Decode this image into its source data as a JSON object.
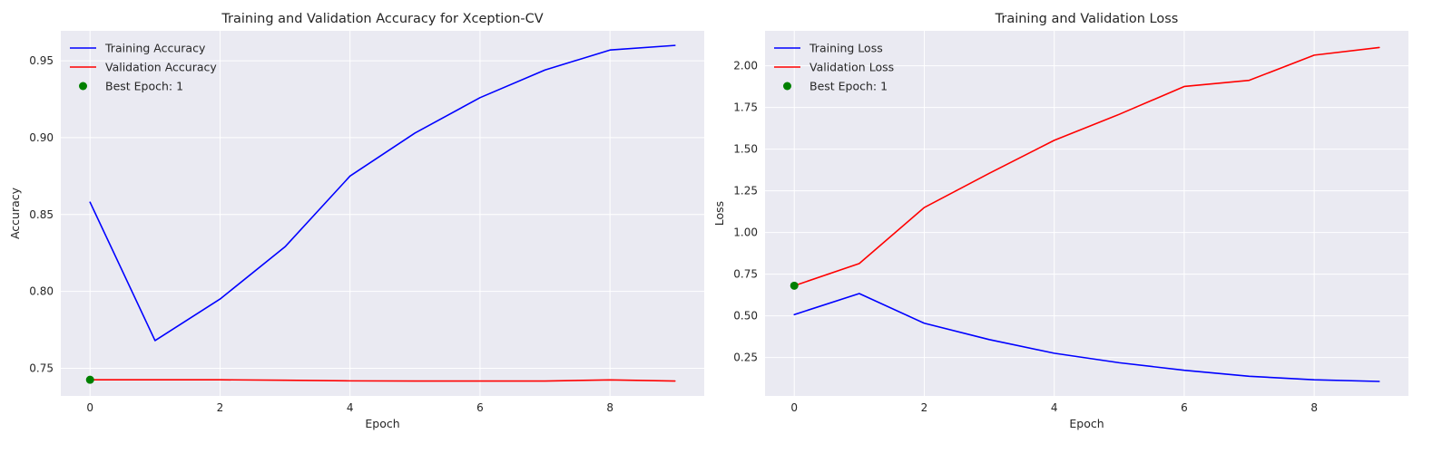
{
  "chart_data": [
    {
      "type": "line",
      "title": "Training and Validation Accuracy for Xception-CV",
      "xlabel": "Epoch",
      "ylabel": "Accuracy",
      "xlim": [
        -0.45,
        9.45
      ],
      "ylim": [
        0.732,
        0.9695
      ],
      "xticks": [
        0,
        2,
        4,
        6,
        8
      ],
      "yticks": [
        0.75,
        0.8,
        0.85,
        0.9,
        0.95
      ],
      "grid": true,
      "legend_position": "top-left",
      "x": [
        0,
        1,
        2,
        3,
        4,
        5,
        6,
        7,
        8,
        9
      ],
      "series": [
        {
          "name": "Training Accuracy",
          "color": "#0000ff",
          "values": [
            0.858,
            0.768,
            0.795,
            0.829,
            0.875,
            0.903,
            0.926,
            0.944,
            0.957,
            0.96
          ]
        },
        {
          "name": "Validation Accuracy",
          "color": "#ff0000",
          "values": [
            0.7425,
            0.7425,
            0.7425,
            0.7422,
            0.7418,
            0.7417,
            0.7417,
            0.7417,
            0.7424,
            0.7417
          ]
        }
      ],
      "best_point": {
        "label": "Best Epoch: 1",
        "x": 0,
        "y": 0.7425,
        "color": "#008000"
      }
    },
    {
      "type": "line",
      "title": "Training and Validation Loss",
      "xlabel": "Epoch",
      "ylabel": "Loss",
      "xlim": [
        -0.45,
        9.45
      ],
      "ylim": [
        0.02,
        2.21
      ],
      "xticks": [
        0,
        2,
        4,
        6,
        8
      ],
      "yticks": [
        0.25,
        0.5,
        0.75,
        1.0,
        1.25,
        1.5,
        1.75,
        2.0
      ],
      "grid": true,
      "legend_position": "top-left",
      "x": [
        0,
        1,
        2,
        3,
        4,
        5,
        6,
        7,
        8,
        9
      ],
      "series": [
        {
          "name": "Training Loss",
          "color": "#0000ff",
          "values": [
            0.508,
            0.634,
            0.456,
            0.358,
            0.276,
            0.219,
            0.174,
            0.138,
            0.117,
            0.107
          ]
        },
        {
          "name": "Validation Loss",
          "color": "#ff0000",
          "values": [
            0.681,
            0.814,
            1.15,
            1.355,
            1.553,
            1.709,
            1.876,
            1.913,
            2.064,
            2.11
          ]
        }
      ],
      "best_point": {
        "label": "Best Epoch: 1",
        "x": 0,
        "y": 0.681,
        "color": "#008000"
      }
    }
  ]
}
